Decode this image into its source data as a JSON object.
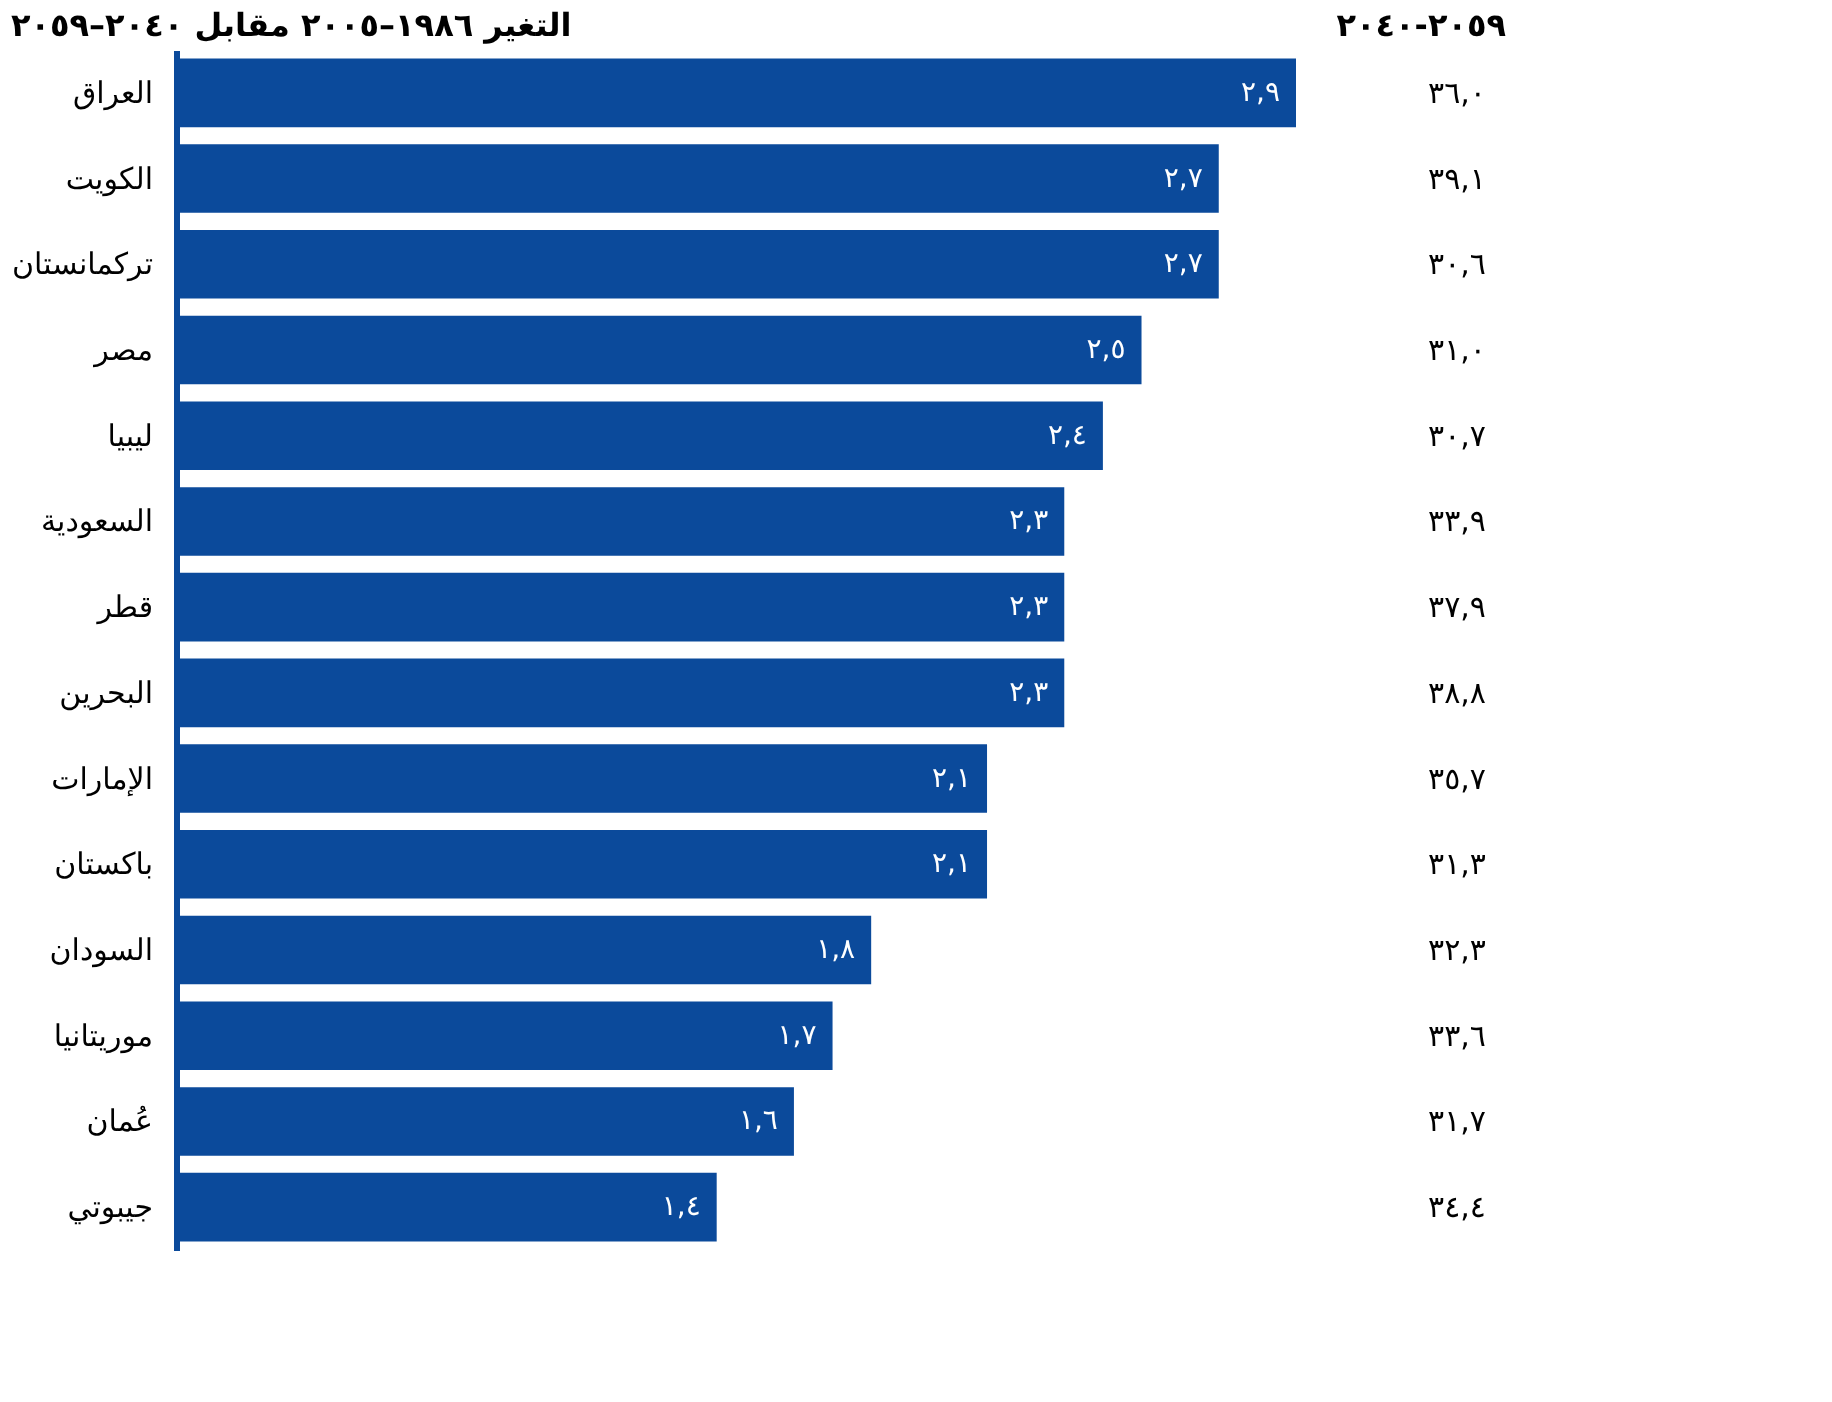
{
  "chart_data": [
    {
      "type": "bar",
      "orientation": "horizontal",
      "title": "التغير ١٩٨٦–٢٠٠٥ مقابل ٢٠٤٠–٢٠٥٩",
      "color": "#0b4a9b",
      "categories": [
        "العراق",
        "الكويت",
        "تركمانستان",
        "مصر",
        "ليبيا",
        "السعودية",
        "قطر",
        "البحرين",
        "الإمارات",
        "باكستان",
        "السودان",
        "موريتانيا",
        "عُمان",
        "جيبوتي"
      ],
      "values": [
        2.9,
        2.7,
        2.7,
        2.5,
        2.4,
        2.3,
        2.3,
        2.3,
        2.1,
        2.1,
        1.8,
        1.7,
        1.6,
        1.4
      ],
      "value_labels": [
        "٢,٩",
        "٢,٧",
        "٢,٧",
        "٢,٥",
        "٢,٤",
        "٢,٣",
        "٢,٣",
        "٢,٣",
        "٢,١",
        "٢,١",
        "١,٨",
        "١,٧",
        "١,٦",
        "١,٤"
      ],
      "tick_labels": "y",
      "grid": false,
      "legend": false
    },
    {
      "type": "other",
      "title": "٢٠٥٩-٢٠٤٠",
      "values": [
        36.0,
        39.1,
        30.6,
        31.0,
        30.7,
        33.9,
        37.9,
        38.8,
        35.7,
        31.3,
        32.3,
        33.6,
        31.7,
        34.4
      ],
      "value_labels": [
        "٣٦,٠",
        "٣٩,١",
        "٣٠,٦",
        "٣١,٠",
        "٣٠,٧",
        "٣٣,٩",
        "٣٧,٩",
        "٣٨,٨",
        "٣٥,٧",
        "٣١,٣",
        "٣٢,٣",
        "٣٣,٦",
        "٣١,٧",
        "٣٤,٤"
      ]
    }
  ]
}
